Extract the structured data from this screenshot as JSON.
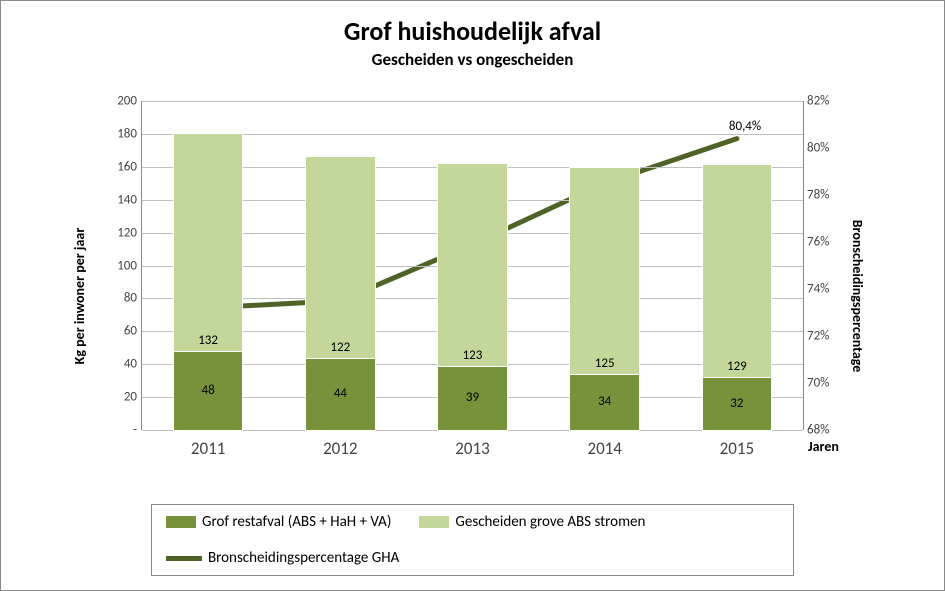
{
  "title": "Grof huishoudelijk afval",
  "subtitle": "Gescheiden vs ongescheiden",
  "x_axis": {
    "title": "Jaren",
    "categories": [
      "2011",
      "2012",
      "2013",
      "2014",
      "2015"
    ]
  },
  "y1_axis": {
    "title": "Kg per inwoner per jaar",
    "min": 0,
    "max": 200,
    "step": 20,
    "ticks": [
      "-",
      "20",
      "40",
      "60",
      "80",
      "100",
      "120",
      "140",
      "160",
      "180",
      "200"
    ]
  },
  "y2_axis": {
    "title": "Bronscheidingspercentage",
    "min": 68,
    "max": 82,
    "step": 2,
    "ticks": [
      "68%",
      "70%",
      "72%",
      "74%",
      "76%",
      "78%",
      "80%",
      "82%"
    ]
  },
  "series": {
    "grof_restafval": {
      "label": "Grof restafval (ABS + HaH + VA)",
      "color": "#76933c",
      "values": [
        48,
        44,
        39,
        34,
        32
      ]
    },
    "gescheiden": {
      "label": "Gescheiden grove ABS stromen",
      "color": "#c4d79b",
      "values": [
        132,
        122,
        123,
        125,
        129
      ]
    },
    "bronscheiding": {
      "label": "Bronscheidingspercentage GHA",
      "color": "#4f6228",
      "line_width": 5,
      "values_pct": [
        73.2,
        73.5,
        75.9,
        78.5,
        80.4
      ],
      "end_label": "80,4%"
    }
  },
  "colors": {
    "frame_border": "#888888",
    "grid": "#bfbfbf",
    "background": "#ffffff"
  },
  "layout": {
    "bar_width_ratio": 0.52
  }
}
